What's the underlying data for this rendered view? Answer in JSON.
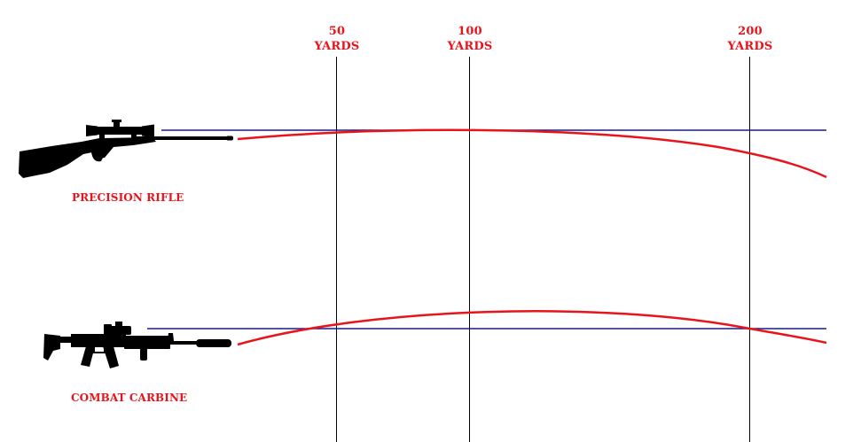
{
  "colors": {
    "trajectory": "#e8141c",
    "line_of_sight": "#1a1a80",
    "distance_marker": "#000000",
    "label_text": "#e8141c",
    "silhouette": "#000000"
  },
  "distance_markers": [
    {
      "value": "50",
      "unit": "YARDS"
    },
    {
      "value": "100",
      "unit": "YARDS"
    },
    {
      "value": "200",
      "unit": "YARDS"
    }
  ],
  "weapons": [
    {
      "label": "PRECISION RIFLE",
      "icon": "bolt-action-rifle-silhouette"
    },
    {
      "label": "COMBAT CARBINE",
      "icon": "carbine-silhouette"
    }
  ]
}
